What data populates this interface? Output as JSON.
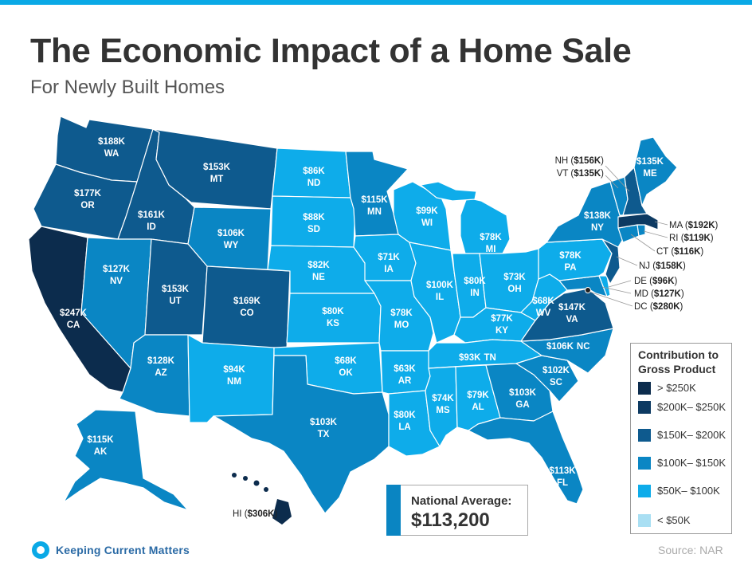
{
  "title": "The Economic Impact of a Home Sale",
  "subtitle": "For Newly Built Homes",
  "colors": {
    "gt250": "#0c2c4d",
    "c200_250": "#0d3a62",
    "c150_200": "#0e5a8e",
    "c100_150": "#0a86c4",
    "c50_100": "#0eacea",
    "lt50": "#a9dff3",
    "accent": "#0aa9e6"
  },
  "states": {
    "WA": {
      "value": "$188K",
      "abbr": "WA"
    },
    "OR": {
      "value": "$177K",
      "abbr": "OR"
    },
    "CA": {
      "value": "$247K",
      "abbr": "CA"
    },
    "ID": {
      "value": "$161K",
      "abbr": "ID"
    },
    "NV": {
      "value": "$127K",
      "abbr": "NV"
    },
    "MT": {
      "value": "$153K",
      "abbr": "MT"
    },
    "WY": {
      "value": "$106K",
      "abbr": "WY"
    },
    "UT": {
      "value": "$153K",
      "abbr": "UT"
    },
    "AZ": {
      "value": "$128K",
      "abbr": "AZ"
    },
    "CO": {
      "value": "$169K",
      "abbr": "CO"
    },
    "NM": {
      "value": "$94K",
      "abbr": "NM"
    },
    "ND": {
      "value": "$86K",
      "abbr": "ND"
    },
    "SD": {
      "value": "$88K",
      "abbr": "SD"
    },
    "NE": {
      "value": "$82K",
      "abbr": "NE"
    },
    "KS": {
      "value": "$80K",
      "abbr": "KS"
    },
    "OK": {
      "value": "$68K",
      "abbr": "OK"
    },
    "TX": {
      "value": "$103K",
      "abbr": "TX"
    },
    "MN": {
      "value": "$115K",
      "abbr": "MN"
    },
    "IA": {
      "value": "$71K",
      "abbr": "IA"
    },
    "MO": {
      "value": "$78K",
      "abbr": "MO"
    },
    "AR": {
      "value": "$63K",
      "abbr": "AR"
    },
    "LA": {
      "value": "$80K",
      "abbr": "LA"
    },
    "WI": {
      "value": "$99K",
      "abbr": "WI"
    },
    "IL": {
      "value": "$100K",
      "abbr": "IL"
    },
    "MI": {
      "value": "$78K",
      "abbr": "MI"
    },
    "IN": {
      "value": "$80K",
      "abbr": "IN"
    },
    "OH": {
      "value": "$73K",
      "abbr": "OH"
    },
    "KY": {
      "value": "$77K",
      "abbr": "KY"
    },
    "TN": {
      "value": "$93K",
      "abbr": "TN"
    },
    "MS": {
      "value": "$74K",
      "abbr": "MS"
    },
    "AL": {
      "value": "$79K",
      "abbr": "AL"
    },
    "GA": {
      "value": "$103K",
      "abbr": "GA"
    },
    "FL": {
      "value": "$113K",
      "abbr": "FL"
    },
    "SC": {
      "value": "$102K",
      "abbr": "SC"
    },
    "NC": {
      "value": "$106K",
      "abbr": "NC"
    },
    "VA": {
      "value": "$147K",
      "abbr": "VA"
    },
    "WV": {
      "value": "$68K",
      "abbr": "WV"
    },
    "PA": {
      "value": "$78K",
      "abbr": "PA"
    },
    "NY": {
      "value": "$138K",
      "abbr": "NY"
    },
    "ME": {
      "value": "$135K",
      "abbr": "ME"
    },
    "AK": {
      "value": "$115K",
      "abbr": "AK"
    }
  },
  "callouts": {
    "NH": {
      "abbr": "NH",
      "value": "$156K"
    },
    "VT": {
      "abbr": "VT",
      "value": "$135K"
    },
    "MA": {
      "abbr": "MA",
      "value": "$192K"
    },
    "RI": {
      "abbr": "RI",
      "value": "$119K"
    },
    "CT": {
      "abbr": "CT",
      "value": "$116K"
    },
    "NJ": {
      "abbr": "NJ",
      "value": "$158K"
    },
    "DE": {
      "abbr": "DE",
      "value": "$96K"
    },
    "MD": {
      "abbr": "MD",
      "value": "$127K"
    },
    "DC": {
      "abbr": "DC",
      "value": "$280K"
    },
    "HI": {
      "abbr": "HI",
      "value": "$306K"
    }
  },
  "legend": {
    "title": "Contribution to Gross Product",
    "items": [
      {
        "label": "> $250K",
        "color": "#0c2c4d"
      },
      {
        "label": "$200K– $250K",
        "color": "#0d3a62"
      },
      {
        "label": "$150K– $200K",
        "color": "#0e5a8e"
      },
      {
        "label": "$100K– $150K",
        "color": "#0a86c4"
      },
      {
        "label": "$50K– $100K",
        "color": "#0eacea"
      },
      {
        "label": "< $50K",
        "color": "#a9dff3"
      }
    ]
  },
  "national_average": {
    "label": "National Average:",
    "value": "$113,200"
  },
  "logo": {
    "text": "Keeping Current Matters"
  },
  "source": "Source: NAR"
}
